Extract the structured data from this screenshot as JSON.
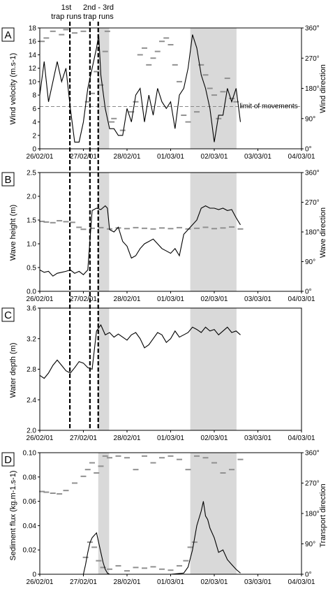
{
  "annotations": {
    "trap1_line1": "1st",
    "trap1_line2": "trap runs",
    "trap23_line1": "2nd - 3rd",
    "trap23_line2": "trap runs",
    "limit_label": "limit of movements"
  },
  "x_tick_labels": [
    "26/02/01",
    "27/02/01",
    "28/02/01",
    "01/03/01",
    "02/03/01",
    "03/03/01",
    "04/03/01"
  ],
  "events": {
    "trap_runs_days": [
      0.69,
      1.15,
      1.34
    ]
  },
  "shaded_periods_days": [
    [
      1.34,
      1.59
    ],
    [
      3.45,
      4.51
    ]
  ],
  "colors": {
    "primary_line": "#000000",
    "secondary_marks": "#909090",
    "shading": "#d9d9d9",
    "limit_line": "#888888"
  },
  "chart_data": [
    {
      "panel": "A",
      "type": "line",
      "ylabel": "Wind velocity (m.s-1)",
      "y2label": "Wind direction",
      "ylim": [
        0,
        18
      ],
      "yticks": [
        "0",
        "2",
        "4",
        "6",
        "8",
        "10",
        "12",
        "14",
        "16",
        "18"
      ],
      "y2lim": [
        0,
        360
      ],
      "y2ticks": [
        "0°",
        "90°",
        "180°",
        "270°",
        "360°"
      ],
      "limit_of_movements": 6.3,
      "velocity": {
        "x": [
          0,
          0.1,
          0.2,
          0.3,
          0.4,
          0.5,
          0.6,
          0.7,
          0.8,
          0.9,
          1.0,
          1.1,
          1.2,
          1.3,
          1.35,
          1.4,
          1.5,
          1.6,
          1.7,
          1.8,
          1.9,
          2.0,
          2.1,
          2.2,
          2.3,
          2.4,
          2.5,
          2.6,
          2.7,
          2.8,
          2.9,
          3.0,
          3.1,
          3.2,
          3.3,
          3.4,
          3.5,
          3.6,
          3.7,
          3.8,
          3.9,
          4.0,
          4.1,
          4.2,
          4.3,
          4.4,
          4.5,
          4.6
        ],
        "y": [
          8,
          13,
          7,
          10,
          13,
          10,
          12,
          6,
          1,
          1,
          4,
          9,
          12,
          15,
          17,
          11,
          6,
          3,
          3,
          2,
          2,
          6,
          4,
          8,
          9,
          4,
          8,
          5,
          9,
          7,
          6,
          7,
          3,
          8,
          9,
          12,
          17,
          15,
          11,
          9,
          6,
          1,
          5,
          5,
          9,
          7,
          9,
          4
        ]
      },
      "direction": {
        "x": [
          0.05,
          0.15,
          0.3,
          0.5,
          0.6,
          0.8,
          1.0,
          1.1,
          1.2,
          1.3,
          1.4,
          1.5,
          1.55,
          1.65,
          1.7,
          1.9,
          2.1,
          2.2,
          2.3,
          2.4,
          2.5,
          2.6,
          2.7,
          2.8,
          2.9,
          3.0,
          3.1,
          3.2,
          3.3,
          3.4,
          3.6,
          3.7,
          3.8,
          3.9,
          4.0,
          4.1,
          4.2,
          4.3,
          4.4,
          4.5
        ],
        "y": [
          320,
          330,
          350,
          340,
          355,
          345,
          350,
          140,
          165,
          230,
          190,
          290,
          350,
          80,
          90,
          55,
          110,
          140,
          280,
          300,
          250,
          270,
          290,
          320,
          330,
          310,
          250,
          200,
          100,
          80,
          110,
          250,
          220,
          180,
          160,
          90,
          170,
          210,
          150,
          140
        ]
      }
    },
    {
      "panel": "B",
      "type": "line",
      "ylabel": "Wave height (m)",
      "y2label": "Wave direction",
      "ylim": [
        0,
        2.5
      ],
      "yticks": [
        "0.0",
        "0.5",
        "1.0",
        "1.5",
        "2.0",
        "2.5"
      ],
      "y2lim": [
        0,
        360
      ],
      "y2ticks": [
        "0°",
        "90°",
        "180°",
        "270°",
        "360°"
      ],
      "height": {
        "x": [
          0,
          0.1,
          0.2,
          0.3,
          0.4,
          0.5,
          0.6,
          0.7,
          0.8,
          0.9,
          1.0,
          1.05,
          1.1,
          1.2,
          1.3,
          1.4,
          1.5,
          1.55,
          1.6,
          1.7,
          1.8,
          1.9,
          2.0,
          2.1,
          2.2,
          2.3,
          2.4,
          2.5,
          2.6,
          2.7,
          2.8,
          2.9,
          3.0,
          3.1,
          3.2,
          3.3,
          3.4,
          3.5,
          3.6,
          3.7,
          3.8,
          3.9,
          4.0,
          4.1,
          4.2,
          4.3,
          4.4,
          4.5,
          4.6
        ],
        "y": [
          0.45,
          0.4,
          0.42,
          0.32,
          0.38,
          0.4,
          0.42,
          0.45,
          0.38,
          0.42,
          0.35,
          0.4,
          0.45,
          1.7,
          1.75,
          1.72,
          1.8,
          1.75,
          1.3,
          1.25,
          1.35,
          1.05,
          0.95,
          0.7,
          0.75,
          0.9,
          1.0,
          1.05,
          1.1,
          1.0,
          0.9,
          0.85,
          0.8,
          0.9,
          0.75,
          1.2,
          1.3,
          1.4,
          1.5,
          1.75,
          1.8,
          1.75,
          1.75,
          1.72,
          1.75,
          1.7,
          1.72,
          1.55,
          1.4
        ]
      },
      "direction": {
        "x": [
          0.05,
          0.15,
          0.3,
          0.45,
          0.6,
          0.75,
          0.9,
          1.0,
          1.2,
          1.4,
          1.6,
          1.8,
          2.0,
          2.2,
          2.4,
          2.6,
          2.8,
          3.0,
          3.2,
          3.4,
          3.6,
          3.8,
          4.0,
          4.2,
          4.4,
          4.6
        ],
        "y": [
          212,
          210,
          208,
          214,
          211,
          209,
          194,
          188,
          191,
          193,
          189,
          192,
          190,
          193,
          191,
          189,
          192,
          190,
          193,
          189,
          191,
          194,
          190,
          192,
          195,
          189
        ]
      }
    },
    {
      "panel": "C",
      "type": "line",
      "ylabel": "Water depth (m)",
      "ylim": [
        2.0,
        3.6
      ],
      "yticks": [
        "2.0",
        "2.4",
        "2.8",
        "3.2",
        "3.6"
      ],
      "depth": {
        "x": [
          0,
          0.1,
          0.2,
          0.3,
          0.4,
          0.5,
          0.6,
          0.7,
          0.8,
          0.9,
          1.0,
          1.1,
          1.2,
          1.3,
          1.4,
          1.5,
          1.6,
          1.7,
          1.8,
          1.9,
          2.0,
          2.1,
          2.2,
          2.3,
          2.4,
          2.5,
          2.6,
          2.7,
          2.8,
          2.9,
          3.0,
          3.1,
          3.2,
          3.3,
          3.4,
          3.5,
          3.6,
          3.7,
          3.8,
          3.9,
          4.0,
          4.1,
          4.2,
          4.3,
          4.4,
          4.5,
          4.6
        ],
        "y": [
          2.72,
          2.68,
          2.75,
          2.85,
          2.92,
          2.85,
          2.78,
          2.75,
          2.82,
          2.9,
          2.88,
          2.82,
          2.8,
          3.3,
          3.38,
          3.25,
          3.28,
          3.22,
          3.26,
          3.22,
          3.18,
          3.25,
          3.28,
          3.2,
          3.08,
          3.12,
          3.2,
          3.28,
          3.25,
          3.15,
          3.2,
          3.3,
          3.22,
          3.25,
          3.28,
          3.35,
          3.32,
          3.28,
          3.35,
          3.3,
          3.32,
          3.25,
          3.3,
          3.35,
          3.28,
          3.3,
          3.25
        ]
      }
    },
    {
      "panel": "D",
      "type": "line",
      "ylabel": "Sediment flux (kg.m-1.s-1)",
      "y2label": "Transport direction",
      "ylim": [
        0,
        0.1
      ],
      "yticks": [
        "0",
        "0.02",
        "0.04",
        "0.06",
        "0.08",
        "0.10"
      ],
      "y2lim": [
        0,
        360
      ],
      "y2ticks": [
        "0°",
        "90°",
        "180°",
        "270°",
        "360°"
      ],
      "flux": {
        "x": [
          0,
          0.5,
          1.0,
          1.05,
          1.1,
          1.15,
          1.2,
          1.25,
          1.3,
          1.35,
          1.4,
          1.45,
          1.5,
          1.55,
          1.6,
          1.7,
          2.0,
          2.5,
          3.0,
          3.3,
          3.4,
          3.5,
          3.6,
          3.7,
          3.75,
          3.8,
          3.85,
          3.9,
          4.0,
          4.1,
          4.2,
          4.3,
          4.4,
          4.5,
          4.6
        ],
        "y": [
          0,
          0,
          0,
          0.008,
          0.018,
          0.026,
          0.03,
          0.032,
          0.034,
          0.026,
          0.018,
          0.01,
          0.004,
          0.001,
          0,
          0,
          0,
          0,
          0,
          0.001,
          0.006,
          0.02,
          0.04,
          0.052,
          0.06,
          0.048,
          0.045,
          0.038,
          0.03,
          0.018,
          0.02,
          0.012,
          0.008,
          0.004,
          0.001
        ]
      },
      "direction": {
        "x": [
          0.05,
          0.15,
          0.3,
          0.45,
          0.6,
          0.8,
          1.0,
          1.1,
          1.2,
          1.3,
          1.4,
          1.5,
          1.6,
          1.8,
          2.0,
          2.2,
          2.4,
          2.6,
          2.8,
          3.0,
          3.2,
          3.4,
          3.6,
          3.8,
          4.0,
          4.2,
          4.4,
          4.6
        ],
        "y": [
          245,
          243,
          240,
          238,
          248,
          270,
          290,
          310,
          330,
          300,
          320,
          350,
          345,
          350,
          345,
          310,
          350,
          330,
          345,
          350,
          340,
          310,
          350,
          345,
          330,
          300,
          310,
          340
        ]
      },
      "direction_lower": {
        "x": [
          1.05,
          1.15,
          1.25,
          1.35,
          1.45,
          1.6,
          1.8,
          2.0,
          2.2,
          2.4,
          2.6,
          2.8,
          3.0,
          3.2,
          3.35,
          3.45,
          3.55
        ],
        "y": [
          50,
          95,
          80,
          40,
          20,
          15,
          25,
          10,
          20,
          18,
          22,
          15,
          12,
          25,
          40,
          80,
          95
        ]
      }
    }
  ]
}
